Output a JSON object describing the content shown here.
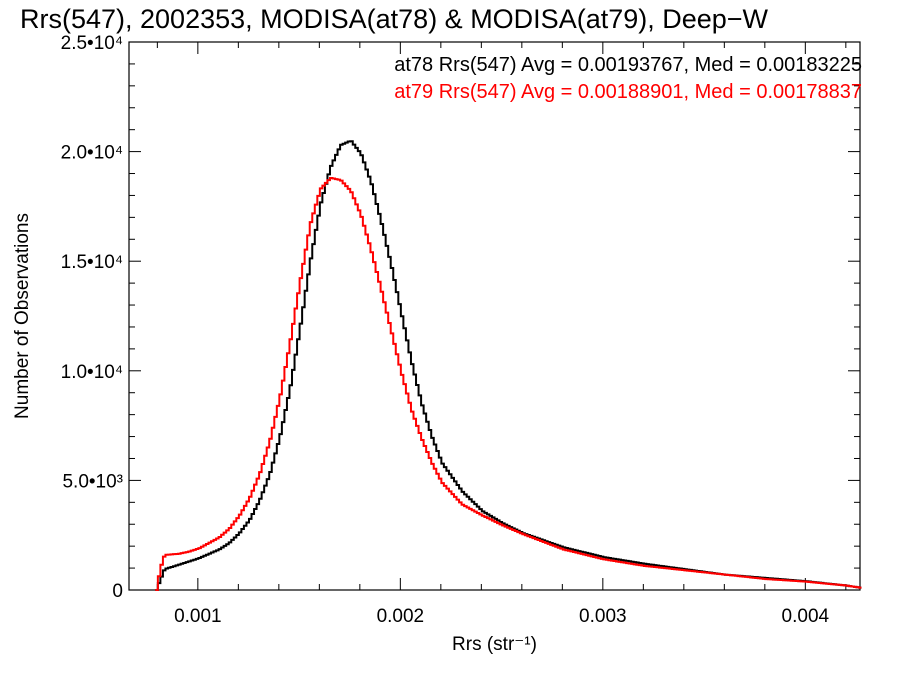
{
  "chart_data": {
    "type": "line",
    "title": "Rrs(547), 2002353, MODISA(at78) & MODISA(at79), Deep−W",
    "xlabel": "Rrs (str⁻¹)",
    "ylabel": "Number of Observations",
    "xlim": [
      0.00066,
      0.00427
    ],
    "ylim": [
      0,
      25000
    ],
    "x_ticks": [
      {
        "value": 0.001,
        "label": "0.001"
      },
      {
        "value": 0.002,
        "label": "0.002"
      },
      {
        "value": 0.003,
        "label": "0.003"
      },
      {
        "value": 0.004,
        "label": "0.004"
      }
    ],
    "y_ticks": [
      {
        "value": 0,
        "label": "0"
      },
      {
        "value": 5000,
        "label": "5.0•10³"
      },
      {
        "value": 10000,
        "label": "1.0•10⁴"
      },
      {
        "value": 15000,
        "label": "1.5•10⁴"
      },
      {
        "value": 20000,
        "label": "2.0•10⁴"
      },
      {
        "value": 25000,
        "label": "2.5•10⁴"
      }
    ],
    "legend_position": "top-right",
    "series": [
      {
        "name": "at78",
        "legend_text": "at78 Rrs(547) Avg = 0.00193767, Med = 0.00183225",
        "color": "#000000",
        "x": [
          0.00079,
          0.00081,
          0.00083,
          0.0009,
          0.001,
          0.0011,
          0.00115,
          0.0012,
          0.00125,
          0.0013,
          0.00135,
          0.0014,
          0.00145,
          0.0015,
          0.00155,
          0.0016,
          0.00165,
          0.0017,
          0.00175,
          0.0018,
          0.00185,
          0.0019,
          0.00195,
          0.002,
          0.00205,
          0.0021,
          0.00215,
          0.0022,
          0.0023,
          0.0024,
          0.0025,
          0.0026,
          0.0028,
          0.003,
          0.0032,
          0.0034,
          0.0036,
          0.0038,
          0.004,
          0.0042,
          0.00427
        ],
        "y": [
          0,
          500,
          950,
          1150,
          1450,
          1850,
          2150,
          2600,
          3200,
          4100,
          5300,
          7000,
          9200,
          12000,
          15000,
          17600,
          19300,
          20300,
          20500,
          19900,
          18600,
          16800,
          14800,
          12600,
          10400,
          8500,
          7000,
          5800,
          4500,
          3600,
          3050,
          2600,
          1950,
          1500,
          1200,
          950,
          700,
          550,
          400,
          200,
          100
        ]
      },
      {
        "name": "at79",
        "legend_text": "at79 Rrs(547) Avg = 0.00188901, Med = 0.00178837",
        "color": "#ff0000",
        "x": [
          0.00079,
          0.00081,
          0.00083,
          0.0009,
          0.00095,
          0.001,
          0.0011,
          0.00115,
          0.0012,
          0.00125,
          0.0013,
          0.00135,
          0.0014,
          0.00145,
          0.0015,
          0.00155,
          0.0016,
          0.00165,
          0.0017,
          0.00175,
          0.0018,
          0.00185,
          0.0019,
          0.00195,
          0.002,
          0.00205,
          0.0021,
          0.00215,
          0.0022,
          0.0023,
          0.0024,
          0.0025,
          0.0026,
          0.0028,
          0.003,
          0.0032,
          0.0034,
          0.0036,
          0.0038,
          0.004,
          0.0042,
          0.00427
        ],
        "y": [
          0,
          1000,
          1600,
          1650,
          1750,
          1900,
          2400,
          2800,
          3400,
          4200,
          5300,
          6800,
          8800,
          11300,
          14100,
          16700,
          18300,
          18800,
          18700,
          18200,
          17100,
          15500,
          13700,
          11800,
          9900,
          8200,
          6900,
          5800,
          4900,
          3900,
          3400,
          2950,
          2550,
          1850,
          1400,
          1100,
          900,
          700,
          500,
          380,
          200,
          100
        ]
      }
    ]
  }
}
